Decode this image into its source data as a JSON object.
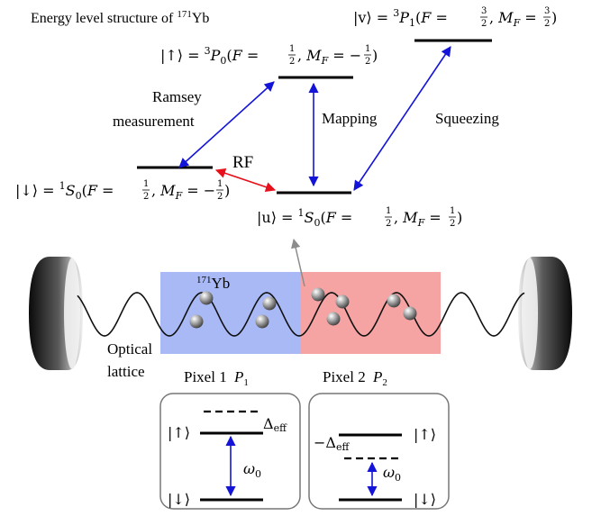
{
  "title": {
    "text": "Energy level structure of ",
    "isotope_mass": "171",
    "isotope_element": "Yb"
  },
  "levels": {
    "up": {
      "ket": "|↑⟩",
      "eq": " = ",
      "term": "P",
      "mult": "3",
      "sub": "0",
      "open": "(",
      "F": "F",
      "eq2": " = ",
      "Fnum": "1",
      "Fden": "2",
      "comma": ", ",
      "M": "M",
      "Msub": "F",
      "Mval": "−",
      "Mnum": "1",
      "Mden": "2",
      "close": ")"
    },
    "v": {
      "ket": "|v⟩",
      "eq": " = ",
      "term": "P",
      "mult": "3",
      "sub": "1",
      "open": "(",
      "F": "F",
      "eq2": " = ",
      "Fnum": "3",
      "Fden": "2",
      "comma": ", ",
      "M": "M",
      "Msub": "F",
      "Mval": "",
      "Mnum": "3",
      "Mden": "2",
      "close": ")"
    },
    "down": {
      "ket": "|↓⟩",
      "eq": " = ",
      "term": "S",
      "mult": "1",
      "sub": "0",
      "open": "(",
      "F": "F",
      "eq2": " = ",
      "Fnum": "1",
      "Fden": "2",
      "comma": ", ",
      "M": "M",
      "Msub": "F",
      "Mval": "−",
      "Mnum": "1",
      "Mden": "2",
      "close": ")"
    },
    "u": {
      "ket": "|u⟩",
      "eq": " = ",
      "term": "S",
      "mult": "1",
      "sub": "0",
      "open": "(",
      "F": "F",
      "eq2": " = ",
      "Fnum": "1",
      "Fden": "2",
      "comma": ", ",
      "M": "M",
      "Msub": "F",
      "Mval": "",
      "Mnum": "1",
      "Mden": "2",
      "close": ")"
    }
  },
  "transitions": {
    "ramsey_line1": "Ramsey",
    "ramsey_line2": "measurement",
    "mapping": "Mapping",
    "squeezing": "Squeezing",
    "rf": "RF"
  },
  "lattice": {
    "atom_mass": "171",
    "atom_element": "Yb",
    "label_line1": "Optical",
    "label_line2": "lattice"
  },
  "pixels": [
    {
      "name": "Pixel 1",
      "sym": "P",
      "sub": "1",
      "top_ket": "|↑⟩",
      "bottom_ket": "|↓⟩",
      "shift": "Δ",
      "shift_sub": "eff",
      "freq": "ω",
      "freq_sub": "0"
    },
    {
      "name": "Pixel 2",
      "sym": "P",
      "sub": "2",
      "top_ket": "|↑⟩",
      "bottom_ket": "|↓⟩",
      "shift": "−Δ",
      "shift_sub": "eff",
      "freq": "ω",
      "freq_sub": "0"
    }
  ],
  "colors": {
    "blue_arrow": "#1414d8",
    "red_arrow": "#e8101a",
    "gray_arrow": "#8c8c8c",
    "pixel1_fill": "#a9b9f6",
    "pixel2_fill": "#f6a3a3",
    "level_line": "#000000"
  }
}
